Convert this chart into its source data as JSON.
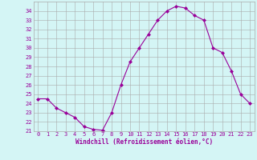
{
  "x": [
    0,
    1,
    2,
    3,
    4,
    5,
    6,
    7,
    8,
    9,
    10,
    11,
    12,
    13,
    14,
    15,
    16,
    17,
    18,
    19,
    20,
    21,
    22,
    23
  ],
  "y": [
    24.5,
    24.5,
    23.5,
    23.0,
    22.5,
    21.5,
    21.2,
    21.1,
    23.0,
    26.0,
    28.5,
    30.0,
    31.5,
    33.0,
    34.0,
    34.5,
    34.3,
    33.5,
    33.0,
    30.0,
    29.5,
    27.5,
    25.0,
    24.0
  ],
  "color": "#990099",
  "bg_color": "#d4f5f5",
  "grid_color": "#aaaaaa",
  "ylim_min": 21,
  "ylim_max": 35,
  "xlim_min": -0.5,
  "xlim_max": 23.5,
  "yticks": [
    21,
    22,
    23,
    24,
    25,
    26,
    27,
    28,
    29,
    30,
    31,
    32,
    33,
    34
  ],
  "xticks": [
    0,
    1,
    2,
    3,
    4,
    5,
    6,
    7,
    8,
    9,
    10,
    11,
    12,
    13,
    14,
    15,
    16,
    17,
    18,
    19,
    20,
    21,
    22,
    23
  ],
  "xlabel": "Windchill (Refroidissement éolien,°C)",
  "xlabel_color": "#990099",
  "marker": "D",
  "markersize": 2,
  "linewidth": 0.8,
  "tick_fontsize": 5,
  "xlabel_fontsize": 5.5
}
